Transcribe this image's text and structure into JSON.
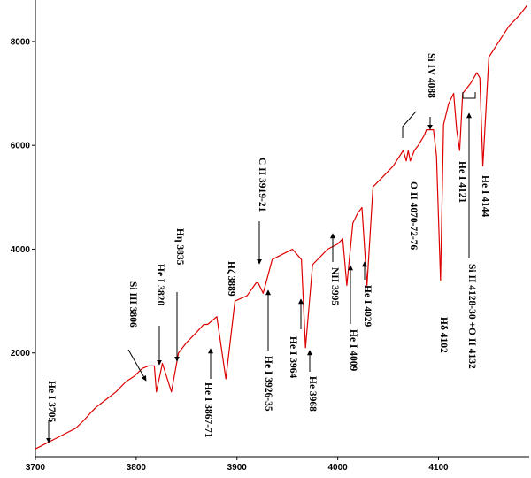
{
  "chart_data": {
    "type": "line",
    "title": "",
    "xlabel": "",
    "ylabel": "",
    "xlim": [
      3700,
      4190
    ],
    "ylim": [
      0,
      8800
    ],
    "x_ticks": [
      3700,
      3800,
      3900,
      4000,
      4100
    ],
    "y_ticks": [
      2000,
      4000,
      6000,
      8000
    ],
    "grid": false,
    "line_color": "#dd0000",
    "series": [
      {
        "x": [
          3700,
          3705,
          3710,
          3720,
          3730,
          3740,
          3748,
          3755,
          3760,
          3770,
          3780,
          3790,
          3798,
          3806,
          3812,
          3818,
          3820,
          3826,
          3835,
          3842,
          3850,
          3860,
          3867,
          3871,
          3880,
          3889,
          3898,
          3910,
          3919,
          3921,
          3926,
          3935,
          3945,
          3955,
          3964,
          3968,
          3975,
          3985,
          3990,
          3995,
          4000,
          4005,
          4009,
          4015,
          4020,
          4024,
          4029,
          4035,
          4045,
          4055,
          4065,
          4068,
          4070,
          4072,
          4076,
          4080,
          4086,
          4088,
          4095,
          4098,
          4102,
          4105,
          4110,
          4115,
          4118,
          4121,
          4124,
          4128,
          4132,
          4138,
          4141,
          4144,
          4150,
          4160,
          4170,
          4180,
          4188
        ],
        "y": [
          150,
          200,
          250,
          350,
          450,
          550,
          700,
          850,
          950,
          1100,
          1250,
          1450,
          1550,
          1700,
          1750,
          1750,
          1250,
          1800,
          1250,
          2000,
          2200,
          2400,
          2550,
          2550,
          2700,
          1500,
          3000,
          3100,
          3350,
          3350,
          3150,
          3800,
          3900,
          4000,
          3800,
          2100,
          3700,
          3900,
          4000,
          4050,
          4100,
          4200,
          3300,
          4500,
          4700,
          4800,
          3300,
          5200,
          5400,
          5600,
          5900,
          5700,
          5900,
          5700,
          5900,
          6000,
          6200,
          6300,
          6300,
          5800,
          3400,
          6400,
          6800,
          7000,
          6300,
          5900,
          7000,
          7100,
          7200,
          7400,
          7300,
          5600,
          7700,
          8000,
          8300,
          8500,
          8700
        ]
      }
    ],
    "annotations": [
      {
        "text": "He I 3705",
        "x": 3705
      },
      {
        "text": "Si III 3806",
        "x": 3806
      },
      {
        "text": "He I 3820",
        "x": 3820
      },
      {
        "text": "Hη 3835",
        "x": 3835
      },
      {
        "text": "He I 3867-71",
        "x": 3869
      },
      {
        "text": "Hζ 3889",
        "x": 3889
      },
      {
        "text": "C II 3919-21",
        "x": 3920
      },
      {
        "text": "He I 3926-35",
        "x": 3930
      },
      {
        "text": "He I 3964",
        "x": 3964
      },
      {
        "text": "He 3968",
        "x": 3968
      },
      {
        "text": "NII 3995",
        "x": 3995
      },
      {
        "text": "He I 4009",
        "x": 4009
      },
      {
        "text": "He I 4029",
        "x": 4029
      },
      {
        "text": "O II 4070-72-76",
        "x": 4073
      },
      {
        "text": "Si IV 4088",
        "x": 4088
      },
      {
        "text": "Hδ 4102",
        "x": 4102
      },
      {
        "text": "He I 4121",
        "x": 4121
      },
      {
        "text": "Si II 4128-30 +O II 4132",
        "x": 4130
      },
      {
        "text": "He I 4144",
        "x": 4144
      }
    ]
  }
}
